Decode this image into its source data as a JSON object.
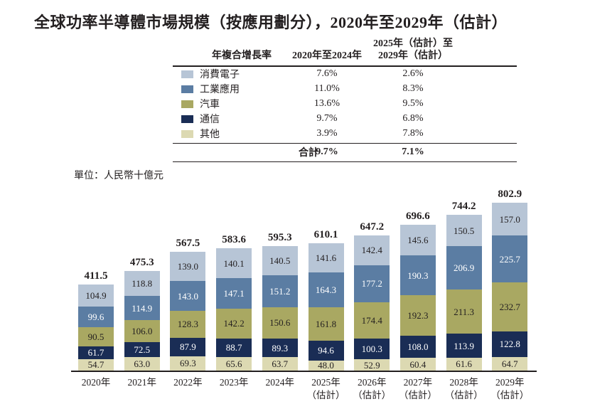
{
  "title": "全球功率半導體市場規模（按應用劃分），2020年至2029年（估計）",
  "unit_label": "單位：人民幣十億元",
  "cagr_table": {
    "header_col1": "年複合增長率",
    "header_col2": "2020年至2024年",
    "header_col3_line1": "2025年（估計）至",
    "header_col3_line2": "2029年（估計）",
    "rows": [
      {
        "name": "消費電子",
        "cagr_2020_2024": "7.6%",
        "cagr_2025_2029": "2.6%"
      },
      {
        "name": "工業應用",
        "cagr_2020_2024": "11.0%",
        "cagr_2025_2029": "8.3%"
      },
      {
        "name": "汽車",
        "cagr_2020_2024": "13.6%",
        "cagr_2025_2029": "9.5%"
      },
      {
        "name": "通信",
        "cagr_2020_2024": "9.7%",
        "cagr_2025_2029": "6.8%"
      },
      {
        "name": "其他",
        "cagr_2020_2024": "3.9%",
        "cagr_2025_2029": "7.8%"
      }
    ],
    "total_row": {
      "label": "合計",
      "cagr_2020_2024": "9.7%",
      "cagr_2025_2029": "7.1%"
    }
  },
  "chart_data": {
    "type": "bar",
    "stacked": true,
    "title": "全球功率半導體市場規模（按應用劃分），2020年至2029年（估計）",
    "ylabel": "人民幣十億元",
    "legend_position": "table-top-left",
    "grid": false,
    "stack_order_top_to_bottom": true,
    "categories": [
      {
        "year": "2020年",
        "note": ""
      },
      {
        "year": "2021年",
        "note": ""
      },
      {
        "year": "2022年",
        "note": ""
      },
      {
        "year": "2023年",
        "note": ""
      },
      {
        "year": "2024年",
        "note": ""
      },
      {
        "year": "2025年",
        "note": "（估計）"
      },
      {
        "year": "2026年",
        "note": "（估計）"
      },
      {
        "year": "2027年",
        "note": "（估計）"
      },
      {
        "year": "2028年",
        "note": "（估計）"
      },
      {
        "year": "2029年",
        "note": "（估計）"
      }
    ],
    "series": [
      {
        "key": "consumer-electronics",
        "name": "消費電子",
        "color": "#b7c5d6",
        "label_color": "#231f20",
        "values": [
          104.9,
          118.8,
          139.0,
          140.1,
          140.5,
          141.6,
          142.4,
          145.6,
          150.5,
          157.0
        ]
      },
      {
        "key": "industrial",
        "name": "工業應用",
        "color": "#5b7da3",
        "label_color": "#ffffff",
        "values": [
          99.6,
          114.9,
          143.0,
          147.1,
          151.2,
          164.3,
          177.2,
          190.3,
          206.9,
          225.7
        ]
      },
      {
        "key": "automotive",
        "name": "汽車",
        "color": "#a9a862",
        "label_color": "#231f20",
        "values": [
          90.5,
          106.0,
          128.3,
          142.2,
          150.6,
          161.8,
          174.4,
          192.3,
          211.3,
          232.7
        ]
      },
      {
        "key": "communications",
        "name": "通信",
        "color": "#1a2d55",
        "label_color": "#ffffff",
        "values": [
          61.7,
          72.5,
          87.9,
          88.7,
          89.3,
          94.6,
          100.3,
          108.0,
          113.9,
          122.8
        ]
      },
      {
        "key": "others",
        "name": "其他",
        "color": "#dcd9b2",
        "label_color": "#231f20",
        "values": [
          54.7,
          63.0,
          69.3,
          65.6,
          63.7,
          48.0,
          52.9,
          60.4,
          61.6,
          64.7
        ]
      }
    ],
    "totals": [
      411.5,
      475.3,
      567.5,
      583.6,
      595.3,
      610.1,
      647.2,
      696.6,
      744.2,
      802.9
    ]
  }
}
